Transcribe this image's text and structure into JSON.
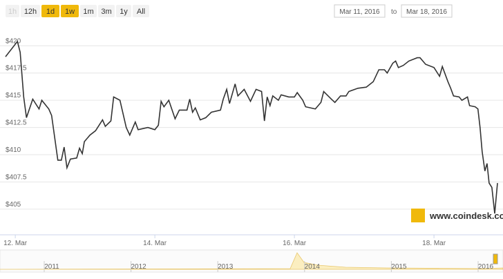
{
  "range_buttons": [
    "1h",
    "12h",
    "1d",
    "1w",
    "1m",
    "3m",
    "1y",
    "All"
  ],
  "date_range": {
    "from": "Mar 11, 2016",
    "separator": "to",
    "to": "Mar 18, 2016"
  },
  "watermark": "www.coindesk.com",
  "navigator": {
    "years": [
      "2011",
      "2012",
      "2013",
      "2014",
      "2015",
      "2016"
    ]
  },
  "chart_data": {
    "type": "line",
    "x": [
      11.86,
      12.03,
      12.07,
      12.12,
      12.16,
      12.25,
      12.34,
      12.38,
      12.48,
      12.52,
      12.61,
      12.66,
      12.7,
      12.74,
      12.79,
      12.88,
      12.92,
      12.96,
      12.99,
      13.07,
      13.15,
      13.25,
      13.29,
      13.37,
      13.41,
      13.5,
      13.59,
      13.64,
      13.72,
      13.76,
      13.9,
      14.0,
      14.05,
      14.09,
      14.13,
      14.2,
      14.29,
      14.35,
      14.46,
      14.5,
      14.54,
      14.58,
      14.65,
      14.73,
      14.81,
      14.94,
      14.98,
      15.03,
      15.07,
      15.15,
      15.19,
      15.28,
      15.37,
      15.45,
      15.53,
      15.57,
      15.61,
      15.65,
      15.69,
      15.77,
      15.81,
      15.92,
      16.0,
      16.04,
      16.12,
      16.16,
      16.3,
      16.38,
      16.42,
      16.53,
      16.58,
      16.66,
      16.74,
      16.78,
      16.91,
      17.03,
      17.13,
      17.21,
      17.29,
      17.33,
      17.41,
      17.45,
      17.49,
      17.56,
      17.64,
      17.76,
      17.8,
      17.88,
      18.0,
      18.08,
      18.12,
      18.2,
      18.24,
      18.28,
      18.36,
      18.4,
      18.48,
      18.51,
      18.59,
      18.63,
      18.66,
      18.69,
      18.73,
      18.76,
      18.79,
      18.83,
      18.87,
      18.91
    ],
    "series": [
      {
        "color": "#333333",
        "values": [
          419.0,
          420.4,
          419.4,
          415.3,
          413.4,
          415.1,
          414.2,
          415.0,
          414.2,
          413.6,
          409.5,
          409.5,
          410.7,
          408.8,
          409.6,
          409.7,
          410.6,
          410.1,
          411.2,
          411.8,
          412.2,
          413.2,
          412.6,
          413.1,
          415.3,
          415.0,
          412.5,
          411.8,
          413.0,
          412.3,
          412.5,
          412.3,
          412.7,
          414.9,
          414.4,
          415.0,
          413.3,
          414.1,
          414.1,
          415.1,
          413.9,
          414.3,
          413.2,
          413.4,
          413.9,
          414.1,
          415.1,
          416.0,
          414.7,
          416.5,
          415.4,
          416.0,
          414.9,
          416.0,
          415.8,
          413.1,
          415.3,
          414.5,
          415.4,
          415.0,
          415.5,
          415.3,
          415.3,
          415.7,
          415.0,
          414.4,
          414.2,
          414.8,
          415.8,
          415.1,
          414.8,
          415.4,
          415.4,
          415.8,
          416.1,
          416.2,
          416.7,
          417.8,
          417.8,
          417.5,
          418.4,
          418.6,
          418.0,
          418.2,
          418.6,
          418.9,
          418.9,
          418.3,
          418.0,
          417.2,
          418.1,
          416.7,
          416.1,
          415.4,
          415.3,
          415.0,
          415.3,
          414.5,
          414.4,
          414.2,
          412.5,
          410.3,
          408.5,
          409.2,
          407.4,
          407.0,
          404.6,
          407.4
        ]
      }
    ],
    "xlim": [
      11.86,
      18.91
    ],
    "xticks": [
      {
        "value": 12,
        "label": "12. Mar"
      },
      {
        "value": 14,
        "label": "14. Mar"
      },
      {
        "value": 16,
        "label": "16. Mar"
      },
      {
        "value": 18,
        "label": "18. Mar"
      }
    ],
    "ylim": [
      403.6,
      422.3
    ],
    "yticks": [
      {
        "value": 405,
        "label": "$405"
      },
      {
        "value": 407.5,
        "label": "$407.5"
      },
      {
        "value": 410,
        "label": "$410"
      },
      {
        "value": 412.5,
        "label": "$412.5"
      },
      {
        "value": 415,
        "label": "$415"
      },
      {
        "value": 417.5,
        "label": "$417.5"
      },
      {
        "value": 420,
        "label": "$420"
      }
    ],
    "grid": true
  }
}
